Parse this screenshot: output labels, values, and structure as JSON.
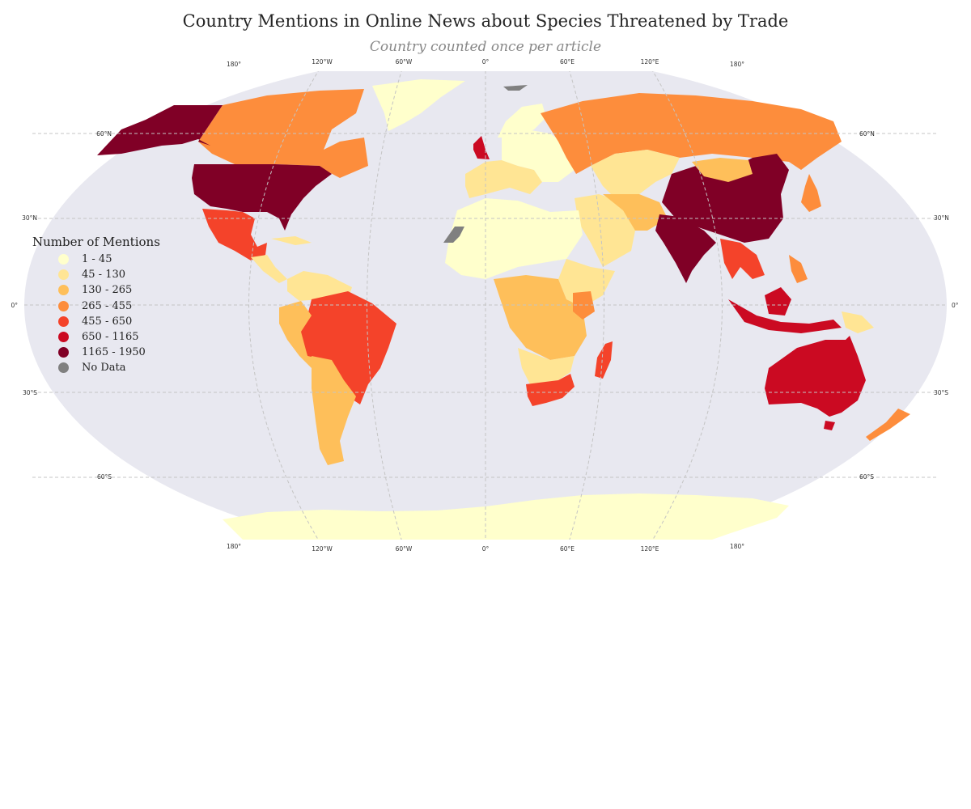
{
  "title": "Country Mentions in Online News about Species Threatened by Trade",
  "subtitle": "Country counted once per article",
  "colors": {
    "ocean": "#e8e8f0",
    "grid": "#c4c4c4",
    "no_data": "#808080",
    "bin1": "#ffffcc",
    "bin2": "#ffe594",
    "bin3": "#febf5a",
    "bin4": "#fd8d3c",
    "bin5": "#f4432a",
    "bin6": "#cb0a22",
    "bin7": "#800026"
  },
  "map": {
    "projection": "Robinson",
    "lon_labels": [
      "180°",
      "120°W",
      "60°W",
      "0°",
      "60°E",
      "120°E",
      "180°"
    ],
    "lat_left_labels": [
      "60°N",
      "30°N",
      "0°",
      "30°S",
      "60°S"
    ],
    "lat_right_labels": [
      "60°N",
      "30°N",
      "0°",
      "30°S",
      "60°S"
    ]
  },
  "legend": {
    "title": "Number of Mentions",
    "items": [
      {
        "label": "1 - 45",
        "color": "#ffffcc"
      },
      {
        "label": "45 - 130",
        "color": "#ffe594"
      },
      {
        "label": "130 - 265",
        "color": "#febf5a"
      },
      {
        "label": "265 - 455",
        "color": "#fd8d3c"
      },
      {
        "label": "455 - 650",
        "color": "#f4432a"
      },
      {
        "label": "650 - 1165",
        "color": "#cb0a22"
      },
      {
        "label": "1165 - 1950",
        "color": "#800026"
      },
      {
        "label": "No Data",
        "color": "#808080"
      }
    ]
  }
}
